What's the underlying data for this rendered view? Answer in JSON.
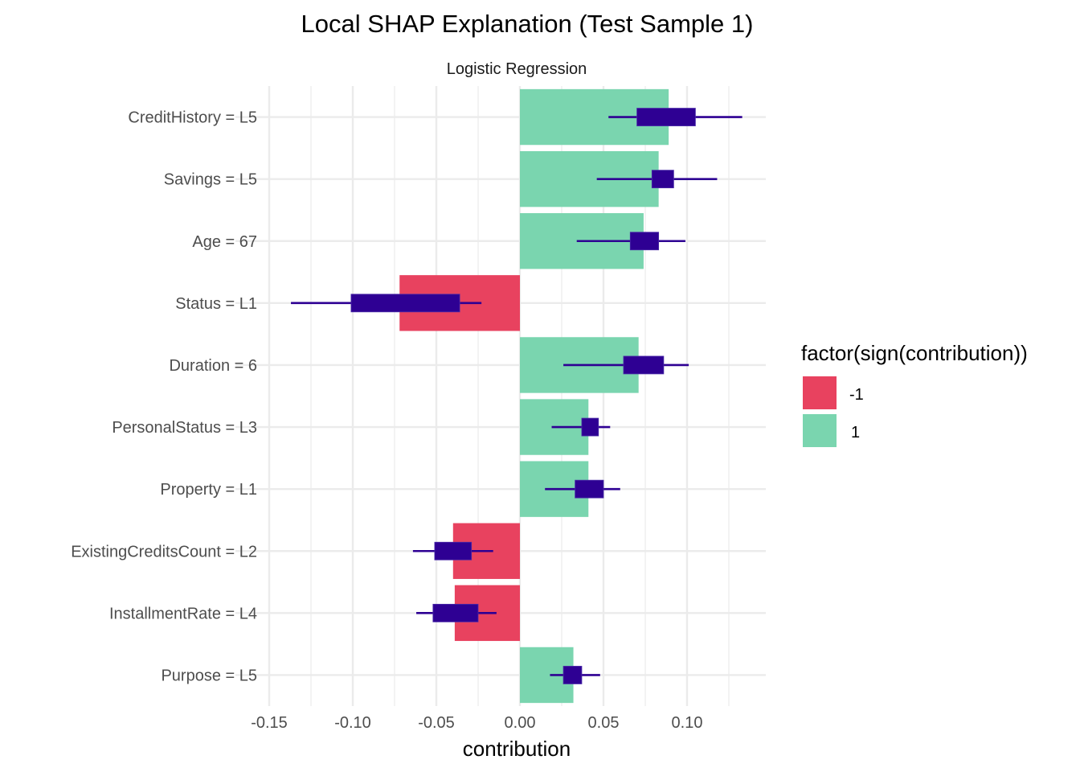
{
  "chart_data": {
    "type": "bar",
    "orientation": "horizontal",
    "title": "Local SHAP Explanation (Test Sample 1)",
    "subtitle": "Logistic Regression",
    "xlabel": "contribution",
    "ylabel": "",
    "xlim": [
      -0.15,
      0.14
    ],
    "xticks": [
      -0.15,
      -0.1,
      -0.05,
      0.0,
      0.05,
      0.1
    ],
    "xtick_labels": [
      "-0.15",
      "-0.10",
      "-0.05",
      "0.00",
      "0.05",
      "0.10"
    ],
    "grid": true,
    "legend": {
      "title": "factor(sign(contribution))",
      "position": "right",
      "entries": [
        {
          "label": "-1",
          "color": "#E8425F"
        },
        {
          "label": "1",
          "color": "#7AD5AF"
        }
      ]
    },
    "boxplot_color": "#2E0093",
    "categories": [
      "CreditHistory = L5",
      "Savings = L5",
      "Age = 67",
      "Status = L1",
      "Duration = 6",
      "PersonalStatus = L3",
      "Property = L1",
      "ExistingCreditsCount = L2",
      "InstallmentRate = L4",
      "Purpose = L5"
    ],
    "values": [
      0.089,
      0.083,
      0.074,
      -0.072,
      0.071,
      0.041,
      0.041,
      -0.04,
      -0.039,
      0.032
    ],
    "sign": [
      1,
      1,
      1,
      -1,
      1,
      1,
      1,
      -1,
      -1,
      1
    ],
    "boxplots": [
      {
        "whisker_low": 0.053,
        "q1": 0.07,
        "q3": 0.105,
        "whisker_high": 0.133
      },
      {
        "whisker_low": 0.046,
        "q1": 0.079,
        "q3": 0.092,
        "whisker_high": 0.118
      },
      {
        "whisker_low": 0.034,
        "q1": 0.066,
        "q3": 0.083,
        "whisker_high": 0.099
      },
      {
        "whisker_low": -0.137,
        "q1": -0.101,
        "q3": -0.036,
        "whisker_high": -0.023
      },
      {
        "whisker_low": 0.026,
        "q1": 0.062,
        "q3": 0.086,
        "whisker_high": 0.101
      },
      {
        "whisker_low": 0.019,
        "q1": 0.037,
        "q3": 0.047,
        "whisker_high": 0.054
      },
      {
        "whisker_low": 0.015,
        "q1": 0.033,
        "q3": 0.05,
        "whisker_high": 0.06
      },
      {
        "whisker_low": -0.064,
        "q1": -0.051,
        "q3": -0.029,
        "whisker_high": -0.016
      },
      {
        "whisker_low": -0.062,
        "q1": -0.052,
        "q3": -0.025,
        "whisker_high": -0.014
      },
      {
        "whisker_low": 0.018,
        "q1": 0.026,
        "q3": 0.037,
        "whisker_high": 0.048
      }
    ]
  }
}
